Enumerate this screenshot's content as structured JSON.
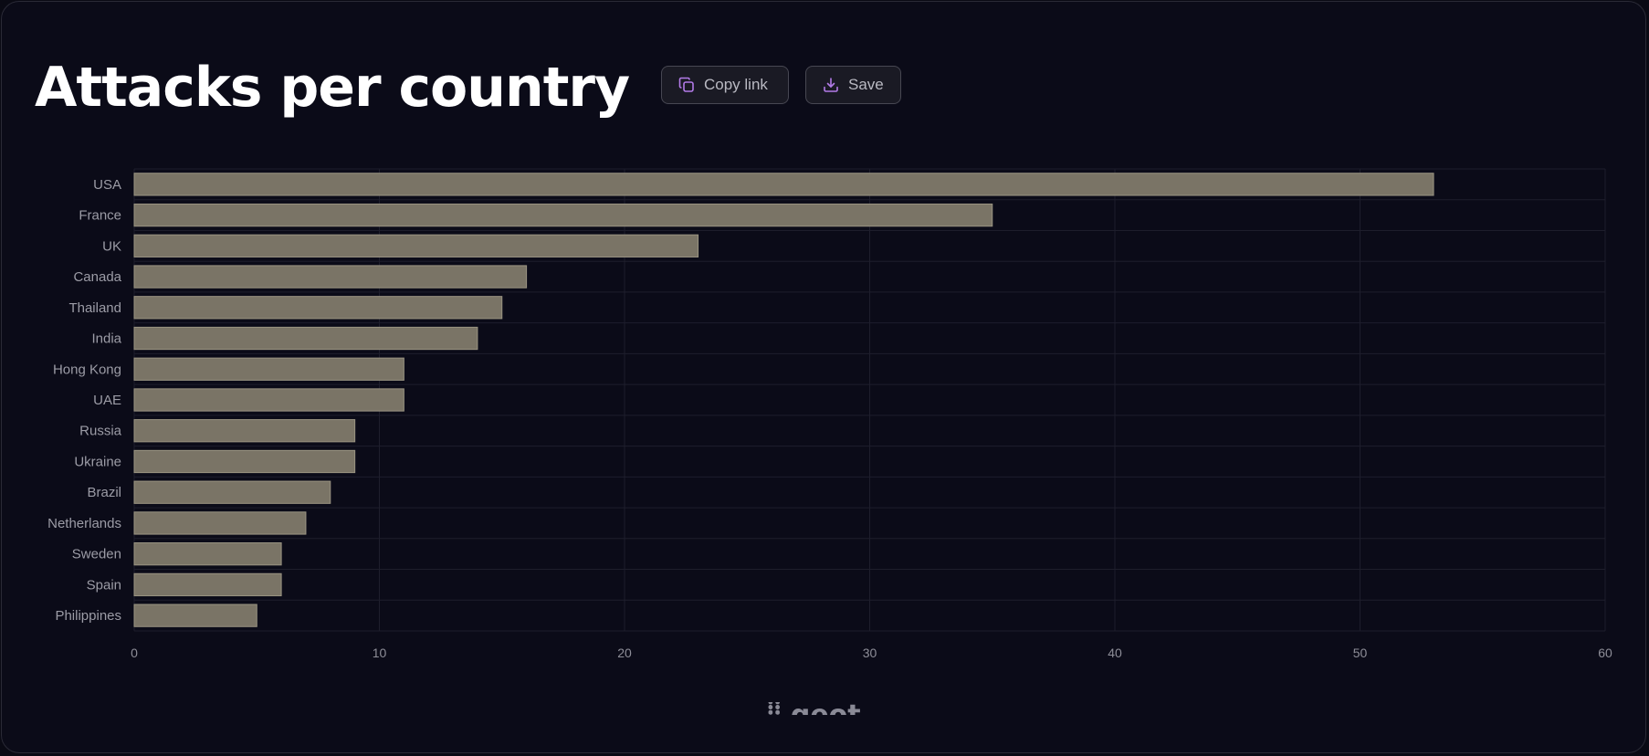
{
  "header": {
    "title": "Attacks per country",
    "copy_link_label": "Copy link",
    "save_label": "Save",
    "copy_icon": "copy-icon",
    "save_icon": "download-icon",
    "icon_color": "#b27be8"
  },
  "watermark": {
    "text": "⸽⸽ geot"
  },
  "chart_data": {
    "type": "bar",
    "orientation": "horizontal",
    "categories": [
      "USA",
      "France",
      "UK",
      "Canada",
      "Thailand",
      "India",
      "Hong Kong",
      "UAE",
      "Russia",
      "Ukraine",
      "Brazil",
      "Netherlands",
      "Sweden",
      "Spain",
      "Philippines"
    ],
    "values": [
      53,
      35,
      23,
      16,
      15,
      14,
      11,
      11,
      9,
      9,
      8,
      7,
      6,
      6,
      5
    ],
    "title": "Attacks per country",
    "xlabel": "",
    "ylabel": "",
    "xlim": [
      0,
      60
    ],
    "xticks": [
      0,
      10,
      20,
      30,
      40,
      50,
      60
    ],
    "grid": true,
    "legend": "none",
    "bar_color": "#7a7466",
    "bar_border_color": "#9a9482"
  }
}
